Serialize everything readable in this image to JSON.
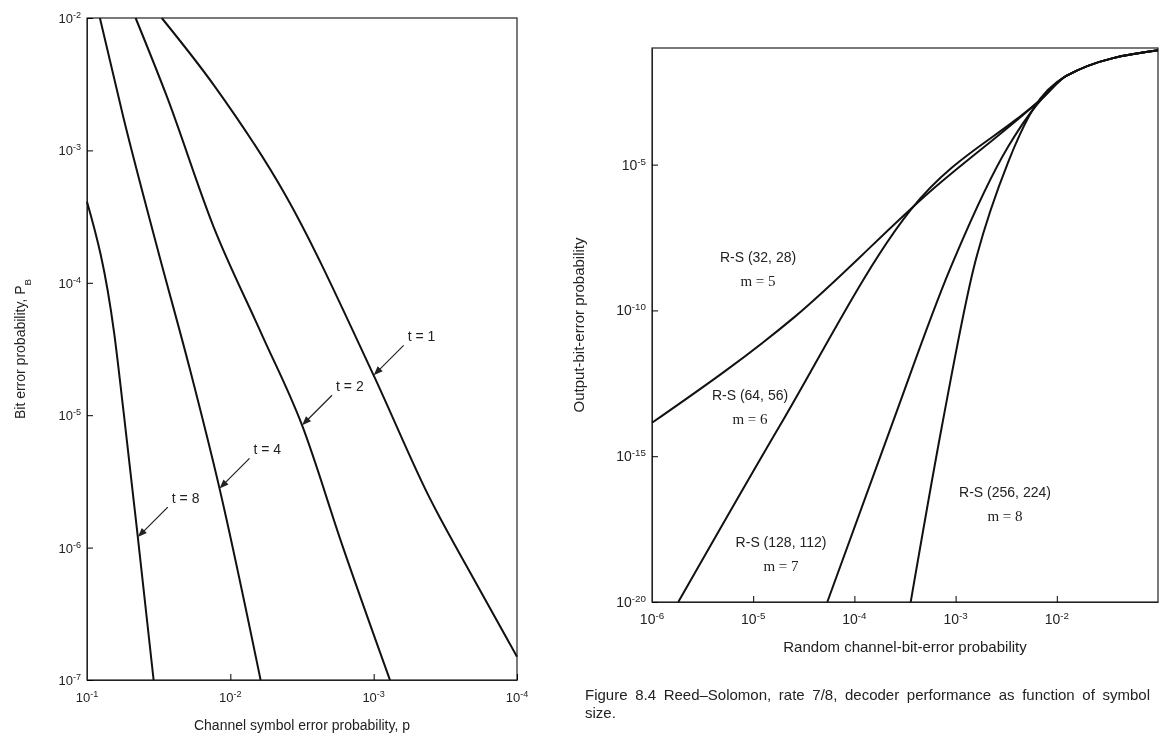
{
  "chart_data": [
    {
      "type": "line",
      "xlabel": "Channel symbol error probability, p",
      "ylabel": "Bit error probability, P$_{B}$",
      "log": "xy",
      "grid": false,
      "marker": "none",
      "line_style": "solid",
      "xlim": [
        0.1,
        0.0001
      ],
      "xticks": [
        {
          "value": 0.1,
          "label": "10$^{-1}$"
        },
        {
          "value": 0.01,
          "label": "10$^{-2}$"
        },
        {
          "value": 0.001,
          "label": "10$^{-3}$"
        },
        {
          "value": 0.0001,
          "label": "10$^{-4}$"
        }
      ],
      "ylim": [
        1e-07,
        0.01
      ],
      "yticks": [
        {
          "value": 1e-07,
          "label": "10$^{-7}$"
        },
        {
          "value": 1e-06,
          "label": "10$^{-6}$"
        },
        {
          "value": 1e-05,
          "label": "10$^{-5}$"
        },
        {
          "value": 0.0001,
          "label": "10$^{-4}$"
        },
        {
          "value": 0.001,
          "label": "10$^{-3}$"
        },
        {
          "value": 0.01,
          "label": "10$^{-2}$"
        }
      ],
      "series": [
        {
          "color": "#111111",
          "x": [
            0.1,
            0.0647,
            0.0555,
            0.0442,
            0.0343
          ],
          "values": [
            0.00041,
            4.2e-05,
            1.05e-05,
            1.2e-06,
            1e-07
          ]
        },
        {
          "color": "#111111",
          "x": [
            0.0813,
            0.0555,
            0.0325,
            0.0191,
            0.0119,
            0.00615
          ],
          "values": [
            0.01,
            0.00174,
            0.000187,
            2.2e-05,
            2.8e-06,
            1e-07
          ]
        },
        {
          "color": "#111111",
          "x": [
            0.0458,
            0.0279,
            0.013,
            0.00605,
            0.00316,
            0.00165,
            0.00077
          ],
          "values": [
            0.01,
            0.0026,
            0.00026,
            4.1e-05,
            8.4e-06,
            1.03e-06,
            1e-07
          ]
        },
        {
          "color": "#111111",
          "x": [
            0.0301,
            0.013,
            0.00413,
            0.001,
            0.000417,
            0.000195,
            0.0001
          ],
          "values": [
            0.01,
            0.0031,
            0.00046,
            2e-05,
            2.5e-06,
            5.5e-07,
            1.5e-07
          ]
        }
      ],
      "annotations": [
        {
          "text": "t = 1",
          "x": 0.001,
          "y": 2e-05
        },
        {
          "text": "t = 2",
          "x": 0.00316,
          "y": 8.4e-06
        },
        {
          "text": "t = 4",
          "x": 0.0119,
          "y": 2.8e-06
        },
        {
          "text": "t = 8",
          "x": 0.0442,
          "y": 1.2e-06
        }
      ]
    },
    {
      "type": "line",
      "xlabel": "Random channel-bit-error probability",
      "ylabel": "Output-bit-error probability",
      "log": "xy",
      "grid": false,
      "marker": "none",
      "line_style": "solid",
      "xlim": [
        1e-06,
        0.1
      ],
      "xticks": [
        {
          "value": 1e-06,
          "label": "10$^{-6}$"
        },
        {
          "value": 1e-05,
          "label": "10$^{-5}$"
        },
        {
          "value": 0.0001,
          "label": "10$^{-4}$"
        },
        {
          "value": 0.001,
          "label": "10$^{-3}$"
        },
        {
          "value": 0.01,
          "label": "10$^{-2}$"
        }
      ],
      "ylim": [
        1e-20,
        0.1
      ],
      "yticks": [
        {
          "value": 1e-20,
          "label": "10$^{-20}$"
        },
        {
          "value": 1e-15,
          "label": "10$^{-15}$"
        },
        {
          "value": 1e-10,
          "label": "10$^{-10}$"
        },
        {
          "value": 1e-05,
          "label": "10$^{-5}$"
        }
      ],
      "series": [
        {
          "color": "#111111",
          "x": [
            1e-06,
            2.57e-05,
            0.00056,
            0.0073,
            0.0124,
            0.1
          ],
          "values": [
            1.4e-14,
            6e-11,
            1.2e-06,
            0.002,
            0.011,
            0.083
          ]
        },
        {
          "color": "#111111",
          "x": [
            1.82e-06,
            1.8e-05,
            0.00036,
            0.0073,
            0.0124,
            0.1
          ],
          "values": [
            1e-20,
            1e-14,
            2.8e-07,
            0.002,
            0.011,
            0.083
          ]
        },
        {
          "color": "#111111",
          "x": [
            5.4e-05,
            0.00023,
            0.00088,
            0.0033,
            0.0073,
            0.0124,
            0.1
          ],
          "values": [
            1e-20,
            1e-14,
            2.6e-09,
            4.1e-05,
            0.002,
            0.011,
            0.083
          ]
        },
        {
          "color": "#111111",
          "x": [
            0.00036,
            0.00073,
            0.0015,
            0.0033,
            0.0058,
            0.0124,
            0.1
          ],
          "values": [
            1e-20,
            1e-14,
            2.6e-09,
            1.2e-05,
            0.00078,
            0.011,
            0.083
          ]
        }
      ],
      "annotations": [
        "R-S (32, 28)\nm = 5",
        "R-S (64, 56)\nm = 6",
        "R-S (128, 112)\nm = 7",
        "R-S (256, 224)\nm = 8",
        "Figure 8.4  Reed–Solomon, rate 7/8, decoder performance as function of symbol size."
      ]
    }
  ]
}
